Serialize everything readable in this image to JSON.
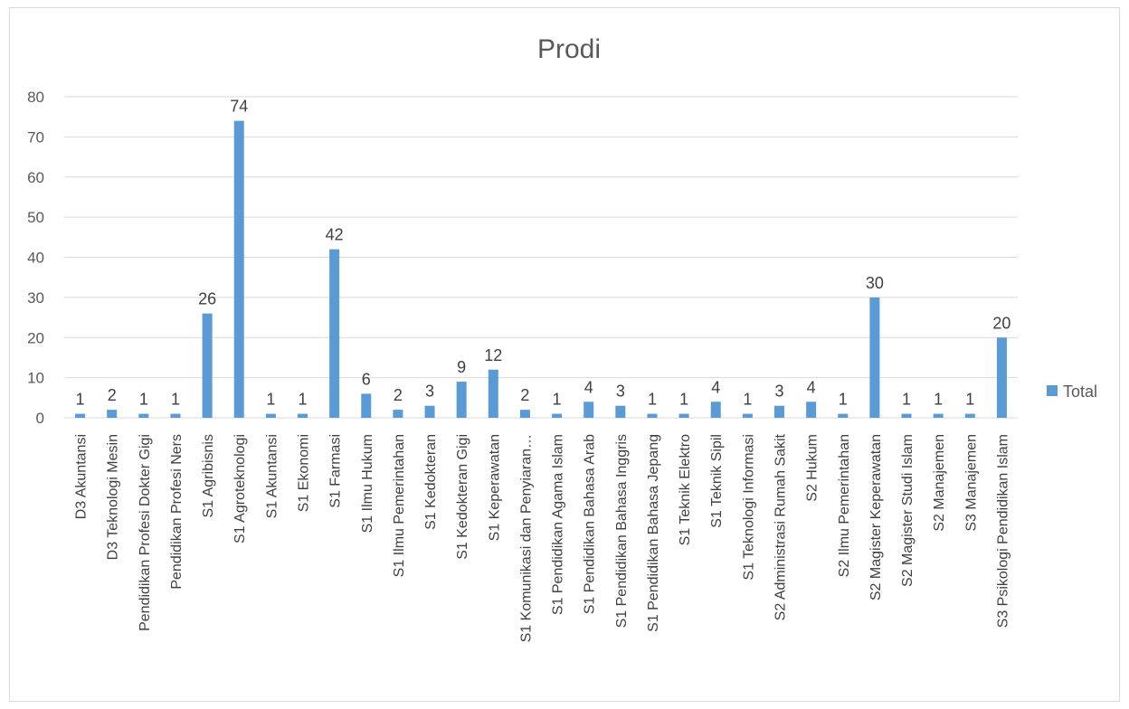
{
  "chart_data": {
    "type": "bar",
    "title": "Prodi",
    "xlabel": "",
    "ylabel": "",
    "ylim": [
      0,
      80
    ],
    "yticks": [
      0,
      10,
      20,
      30,
      40,
      50,
      60,
      70,
      80
    ],
    "grid": true,
    "legend_position": "right",
    "categories": [
      "D3 Akuntansi",
      "D3 Teknologi Mesin",
      "Pendidikan Profesi Dokter Gigi",
      "Pendidikan Profesi Ners",
      "S1 Agribisnis",
      "S1 Agroteknologi",
      "S1 Akuntansi",
      "S1 Ekonomi",
      "S1 Farmasi",
      "S1 Ilmu Hukum",
      "S1 Ilmu Pemerintahan",
      "S1 Kedokteran",
      "S1 Kedokteran Gigi",
      "S1 Keperawatan",
      "S1 Komunikasi dan Penyiaran…",
      "S1 Pendidikan Agama Islam",
      "S1 Pendidikan Bahasa Arab",
      "S1 Pendidikan Bahasa Inggris",
      "S1 Pendidikan Bahasa Jepang",
      "S1 Teknik Elektro",
      "S1 Teknik Sipil",
      "S1 Teknologi Informasi",
      "S2 Administrasi Rumah Sakit",
      "S2 Hukum",
      "S2 Ilmu Pemerintahan",
      "S2 Magister Keperawatan",
      "S2 Magister Studi Islam",
      "S2 Manajemen",
      "S3 Manajemen",
      "S3 Psikologi Pendidikan Islam"
    ],
    "series": [
      {
        "name": "Total",
        "color": "#5b9bd5",
        "values": [
          1,
          2,
          1,
          1,
          26,
          74,
          1,
          1,
          42,
          6,
          2,
          3,
          9,
          12,
          2,
          1,
          4,
          3,
          1,
          1,
          4,
          1,
          3,
          4,
          1,
          30,
          1,
          1,
          1,
          20
        ]
      }
    ]
  }
}
